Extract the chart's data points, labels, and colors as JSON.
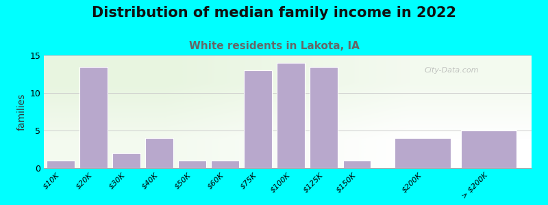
{
  "title": "Distribution of median family income in 2022",
  "subtitle": "White residents in Lakota, IA",
  "ylabel": "families",
  "background_color": "#00FFFF",
  "plot_bg_color_top_left": "#e8f5e0",
  "plot_bg_color_bottom_right": "#ffffff",
  "bar_color": "#b8a8cc",
  "bar_edge_color": "#ffffff",
  "categories": [
    "$10K",
    "$20K",
    "$30K",
    "$40K",
    "$50K",
    "$60K",
    "$75K",
    "$100K",
    "$125K",
    "$150K",
    "$200K",
    "> $200K"
  ],
  "values": [
    1,
    13.5,
    2,
    4,
    1,
    1,
    13,
    14,
    13.5,
    1,
    4,
    5
  ],
  "x_positions": [
    0,
    1,
    2,
    3,
    4,
    5,
    6,
    7,
    8,
    9,
    11,
    13
  ],
  "bar_widths": [
    0.85,
    0.85,
    0.85,
    0.85,
    0.85,
    0.85,
    0.85,
    0.85,
    0.85,
    0.85,
    1.7,
    1.7
  ],
  "ylim": [
    0,
    15
  ],
  "yticks": [
    0,
    5,
    10,
    15
  ],
  "xlim": [
    -0.5,
    14.3
  ],
  "title_fontsize": 15,
  "subtitle_fontsize": 11,
  "subtitle_color": "#666666",
  "title_color": "#111111",
  "watermark": "City-Data.com",
  "tick_label_fontsize": 8
}
